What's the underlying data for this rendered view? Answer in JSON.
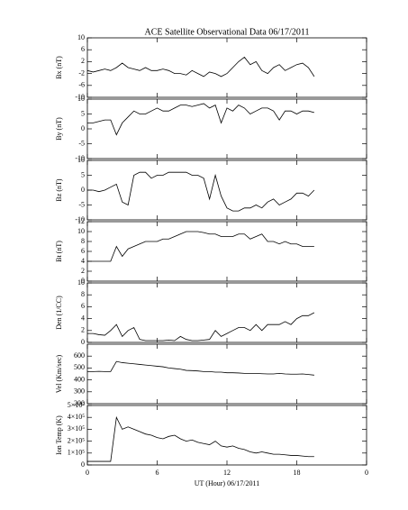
{
  "chart_data": [
    {
      "type": "line",
      "title": "ACE Satellite Observational Data   06/17/2011",
      "ylabel": "Bx (nT)",
      "color": "#000000",
      "x": [
        0,
        0.5,
        1,
        1.5,
        2,
        2.5,
        3,
        3.5,
        4,
        4.5,
        5,
        5.5,
        6,
        6.5,
        7,
        7.5,
        8,
        8.5,
        9,
        9.5,
        10,
        10.5,
        11,
        11.5,
        12,
        12.5,
        13,
        13.5,
        14,
        14.5,
        15,
        15.5,
        16,
        16.5,
        17,
        17.5,
        18,
        18.5,
        19,
        19.5
      ],
      "values": [
        -1,
        -1.5,
        -1,
        -0.5,
        -1,
        0,
        1.5,
        0,
        -0.5,
        -1,
        0,
        -1,
        -1,
        -0.5,
        -1,
        -2,
        -2,
        -2.5,
        -1,
        -2,
        -3,
        -1.5,
        -2,
        -3,
        -2,
        0,
        2,
        3.5,
        1,
        2,
        -1,
        -2,
        0,
        1,
        -1,
        0,
        1,
        1.5,
        0,
        -3
      ],
      "xlim": [
        0,
        24
      ],
      "xticks": [
        0,
        6,
        12,
        18,
        {
          "value": 24,
          "label": "0"
        }
      ],
      "ylim": [
        -10,
        10
      ],
      "yticks": [
        -10,
        -6,
        -2,
        2,
        6,
        10
      ]
    },
    {
      "type": "line",
      "ylabel": "By (nT)",
      "color": "#000000",
      "x": [
        0,
        0.5,
        1,
        1.5,
        2,
        2.5,
        3,
        3.5,
        4,
        4.5,
        5,
        5.5,
        6,
        6.5,
        7,
        7.5,
        8,
        8.5,
        9,
        9.5,
        10,
        10.5,
        11,
        11.5,
        12,
        12.5,
        13,
        13.5,
        14,
        14.5,
        15,
        15.5,
        16,
        16.5,
        17,
        17.5,
        18,
        18.5,
        19,
        19.5
      ],
      "values": [
        2,
        2,
        2.5,
        3,
        3,
        -2,
        2,
        4,
        6,
        5,
        5,
        6,
        7,
        6,
        6,
        7,
        8,
        8,
        7.5,
        8,
        8.5,
        7,
        8,
        2,
        7,
        6,
        8,
        7,
        5,
        6,
        7,
        7,
        6,
        3,
        6,
        6,
        5,
        6,
        6,
        5.5
      ],
      "xlim": [
        0,
        24
      ],
      "xticks": [
        0,
        6,
        12,
        18,
        {
          "value": 24,
          "label": "0"
        }
      ],
      "ylim": [
        -10,
        10
      ],
      "yticks": [
        -10,
        -5,
        0,
        5,
        10
      ]
    },
    {
      "type": "line",
      "ylabel": "Bz (nT)",
      "color": "#000000",
      "x": [
        0,
        0.5,
        1,
        1.5,
        2,
        2.5,
        3,
        3.5,
        4,
        4.5,
        5,
        5.5,
        6,
        6.5,
        7,
        7.5,
        8,
        8.5,
        9,
        9.5,
        10,
        10.5,
        11,
        11.5,
        12,
        12.5,
        13,
        13.5,
        14,
        14.5,
        15,
        15.5,
        16,
        16.5,
        17,
        17.5,
        18,
        18.5,
        19,
        19.5
      ],
      "values": [
        0,
        0,
        -0.5,
        0,
        1,
        2,
        -4,
        -5,
        5,
        6,
        6,
        4,
        5,
        5,
        6,
        6,
        6,
        6,
        5,
        5,
        4,
        -3,
        5,
        -2,
        -6,
        -7,
        -7,
        -6,
        -6,
        -5,
        -6,
        -4,
        -3,
        -5,
        -4,
        -3,
        -1,
        -1,
        -2,
        0
      ],
      "xlim": [
        0,
        24
      ],
      "xticks": [
        0,
        6,
        12,
        18,
        {
          "value": 24,
          "label": "0"
        }
      ],
      "ylim": [
        -10,
        10
      ],
      "yticks": [
        -10,
        -5,
        0,
        5,
        10
      ]
    },
    {
      "type": "line",
      "ylabel": "Bt (nT)",
      "color": "#000000",
      "x": [
        0,
        0.5,
        1,
        1.5,
        2,
        2.5,
        3,
        3.5,
        4,
        4.5,
        5,
        5.5,
        6,
        6.5,
        7,
        7.5,
        8,
        8.5,
        9,
        9.5,
        10,
        10.5,
        11,
        11.5,
        12,
        12.5,
        13,
        13.5,
        14,
        14.5,
        15,
        15.5,
        16,
        16.5,
        17,
        17.5,
        18,
        18.5,
        19,
        19.5
      ],
      "values": [
        4,
        4,
        4,
        4,
        4,
        7,
        5,
        6.5,
        7,
        7.5,
        8,
        8,
        8,
        8.5,
        8.5,
        9,
        9.5,
        10,
        10,
        10,
        9.8,
        9.5,
        9.5,
        9,
        9,
        9,
        9.5,
        9.5,
        8.5,
        9,
        9.5,
        8,
        8,
        7.5,
        8,
        7.5,
        7.5,
        7,
        7,
        7
      ],
      "xlim": [
        0,
        24
      ],
      "xticks": [
        0,
        6,
        12,
        18,
        {
          "value": 24,
          "label": "0"
        }
      ],
      "ylim": [
        0,
        12
      ],
      "yticks": [
        0,
        2,
        4,
        6,
        8,
        10,
        12
      ]
    },
    {
      "type": "line",
      "ylabel": "Den (1/CC)",
      "color": "#000000",
      "x": [
        0,
        0.5,
        1,
        1.5,
        2,
        2.5,
        3,
        3.5,
        4,
        4.5,
        5,
        5.5,
        6,
        6.5,
        7,
        7.5,
        8,
        8.5,
        9,
        9.5,
        10,
        10.5,
        11,
        11.5,
        12,
        12.5,
        13,
        13.5,
        14,
        14.5,
        15,
        15.5,
        16,
        16.5,
        17,
        17.5,
        18,
        18.5,
        19,
        19.5
      ],
      "values": [
        1.5,
        1.5,
        1.3,
        1.2,
        2,
        3,
        1,
        2,
        2.5,
        0.5,
        0.3,
        0.3,
        0.3,
        0.3,
        0.4,
        0.3,
        1,
        0.5,
        0.3,
        0.3,
        0.4,
        0.5,
        2,
        1,
        1.5,
        2,
        2.5,
        2.5,
        2,
        3,
        2,
        3,
        3,
        3,
        3.5,
        3,
        4,
        4.5,
        4.5,
        5
      ],
      "xlim": [
        0,
        24
      ],
      "xticks": [
        0,
        6,
        12,
        18,
        {
          "value": 24,
          "label": "0"
        }
      ],
      "ylim": [
        0,
        10
      ],
      "yticks": [
        0,
        2,
        4,
        6,
        8,
        10
      ]
    },
    {
      "type": "line",
      "ylabel": "Vel (Km/sec)",
      "color": "#000000",
      "x": [
        0,
        0.5,
        1,
        1.5,
        2,
        2.5,
        3,
        3.5,
        4,
        4.5,
        5,
        5.5,
        6,
        6.5,
        7,
        7.5,
        8,
        8.5,
        9,
        9.5,
        10,
        10.5,
        11,
        11.5,
        12,
        12.5,
        13,
        13.5,
        14,
        14.5,
        15,
        15.5,
        16,
        16.5,
        17,
        17.5,
        18,
        18.5,
        19,
        19.5
      ],
      "values": [
        470,
        470,
        472,
        470,
        470,
        555,
        545,
        540,
        535,
        530,
        525,
        520,
        515,
        510,
        500,
        495,
        490,
        480,
        478,
        475,
        470,
        470,
        465,
        465,
        460,
        460,
        458,
        455,
        455,
        455,
        452,
        450,
        450,
        455,
        450,
        448,
        448,
        450,
        445,
        440
      ],
      "xlim": [
        0,
        24
      ],
      "xticks": [
        0,
        6,
        12,
        18,
        {
          "value": 24,
          "label": "0"
        }
      ],
      "ylim": [
        200,
        700
      ],
      "yticks": [
        200,
        300,
        400,
        500,
        600
      ]
    },
    {
      "type": "line",
      "ylabel": "Ion Temp (K)",
      "xlabel": "UT (Hour)   06/17/2011",
      "color": "#000000",
      "x": [
        0,
        0.5,
        1,
        1.5,
        2,
        2.5,
        3,
        3.5,
        4,
        4.5,
        5,
        5.5,
        6,
        6.5,
        7,
        7.5,
        8,
        8.5,
        9,
        9.5,
        10,
        10.5,
        11,
        11.5,
        12,
        12.5,
        13,
        13.5,
        14,
        14.5,
        15,
        15.5,
        16,
        16.5,
        17,
        17.5,
        18,
        18.5,
        19,
        19.5
      ],
      "values": [
        30000,
        30000,
        30000,
        30000,
        30000,
        400000,
        300000,
        320000,
        300000,
        280000,
        260000,
        250000,
        230000,
        220000,
        240000,
        250000,
        220000,
        200000,
        210000,
        190000,
        180000,
        170000,
        200000,
        160000,
        150000,
        160000,
        140000,
        130000,
        110000,
        100000,
        110000,
        100000,
        90000,
        90000,
        85000,
        80000,
        80000,
        75000,
        70000,
        70000
      ],
      "xlim": [
        0,
        24
      ],
      "xticks": [
        0,
        6,
        12,
        18,
        {
          "value": 24,
          "label": "0"
        }
      ],
      "ylim": [
        0,
        500000
      ],
      "yticks": [
        0,
        {
          "value": 100000,
          "label": "1×10⁵"
        },
        {
          "value": 200000,
          "label": "2×10⁵"
        },
        {
          "value": 300000,
          "label": "3×10⁵"
        },
        {
          "value": 400000,
          "label": "4×10⁵"
        },
        {
          "value": 500000,
          "label": "5×10⁵"
        }
      ]
    }
  ]
}
